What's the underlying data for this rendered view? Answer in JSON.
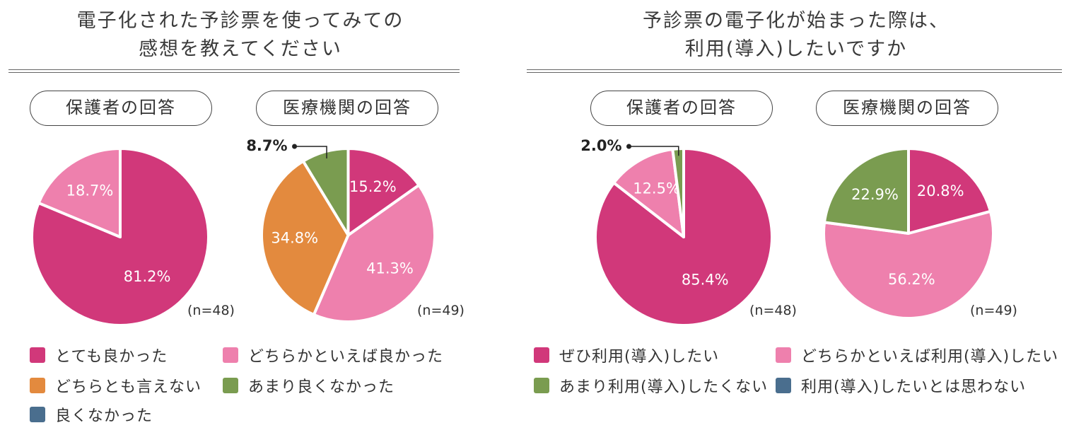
{
  "colors": {
    "magenta": "#d1387a",
    "pink": "#ee80ad",
    "orange": "#e38a3e",
    "green": "#7a9c50",
    "navy": "#4a6e8e"
  },
  "left_panel": {
    "title_line1": "電子化された予診票を使ってみての",
    "title_line2": "感想を教えてください",
    "legend": [
      {
        "label": "とても良かった",
        "color": "#d1387a"
      },
      {
        "label": "どちらかといえば良かった",
        "color": "#ee80ad"
      },
      {
        "label": "どちらとも言えない",
        "color": "#e38a3e"
      },
      {
        "label": "あまり良くなかった",
        "color": "#7a9c50"
      },
      {
        "label": "良くなかった",
        "color": "#4a6e8e"
      }
    ]
  },
  "right_panel": {
    "title_line1": "予診票の電子化が始まった際は、",
    "title_line2": "利用(導入)したいですか",
    "legend": [
      {
        "label": "ぜひ利用(導入)したい",
        "color": "#d1387a"
      },
      {
        "label": "どちらかといえば利用(導入)したい",
        "color": "#ee80ad"
      },
      {
        "label": "あまり利用(導入)したくない",
        "color": "#7a9c50"
      },
      {
        "label": "利用(導入)したいとは思わない",
        "color": "#4a6e8e"
      }
    ]
  },
  "chart_data": [
    {
      "type": "pie",
      "title": "保護者の回答",
      "n_label": "(n=48)",
      "slices": [
        {
          "label": "とても良かった",
          "value": 81.2,
          "value_label": "81.2%",
          "color": "#d1387a"
        },
        {
          "label": "どちらかといえば良かった",
          "value": 18.7,
          "value_label": "18.7%",
          "color": "#ee80ad"
        }
      ]
    },
    {
      "type": "pie",
      "title": "医療機関の回答",
      "n_label": "(n=49)",
      "slices": [
        {
          "label": "とても良かった",
          "value": 15.2,
          "value_label": "15.2%",
          "color": "#d1387a"
        },
        {
          "label": "どちらかといえば良かった",
          "value": 41.3,
          "value_label": "41.3%",
          "color": "#ee80ad"
        },
        {
          "label": "どちらとも言えない",
          "value": 34.8,
          "value_label": "34.8%",
          "color": "#e38a3e"
        },
        {
          "label": "あまり良くなかった",
          "value": 8.7,
          "value_label": "8.7%",
          "color": "#7a9c50",
          "callout": true
        }
      ]
    },
    {
      "type": "pie",
      "title": "保護者の回答",
      "n_label": "(n=48)",
      "slices": [
        {
          "label": "ぜひ利用(導入)したい",
          "value": 85.4,
          "value_label": "85.4%",
          "color": "#d1387a"
        },
        {
          "label": "どちらかといえば利用(導入)したい",
          "value": 12.5,
          "value_label": "12.5%",
          "color": "#ee80ad"
        },
        {
          "label": "あまり利用(導入)したくない",
          "value": 2.0,
          "value_label": "2.0%",
          "color": "#7a9c50",
          "callout": true
        }
      ]
    },
    {
      "type": "pie",
      "title": "医療機関の回答",
      "n_label": "(n=49)",
      "slices": [
        {
          "label": "ぜひ利用(導入)したい",
          "value": 20.8,
          "value_label": "20.8%",
          "color": "#d1387a"
        },
        {
          "label": "どちらかといえば利用(導入)したい",
          "value": 56.2,
          "value_label": "56.2%",
          "color": "#ee80ad"
        },
        {
          "label": "あまり利用(導入)したくない",
          "value": 22.9,
          "value_label": "22.9%",
          "color": "#7a9c50"
        }
      ]
    }
  ]
}
